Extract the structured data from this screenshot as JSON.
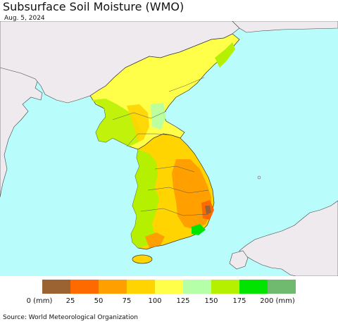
{
  "title": "Subsurface Soil Moisture (WMO)",
  "date": "Aug. 5, 2024",
  "source": "Source: World Meteorological Organization",
  "colors": {
    "ocean": "#b8fcfc",
    "land_other": "#eeeaee",
    "border": "#333333"
  },
  "legend": {
    "colors": [
      "#9b6332",
      "#ff6a00",
      "#ff9f00",
      "#ffd400",
      "#ffff4a",
      "#b5ffa8",
      "#b5f000",
      "#00e400",
      "#6fba6e"
    ],
    "labels": [
      "0 (mm)",
      "25",
      "50",
      "75",
      "100",
      "125",
      "150",
      "175",
      "200 (mm)"
    ]
  }
}
